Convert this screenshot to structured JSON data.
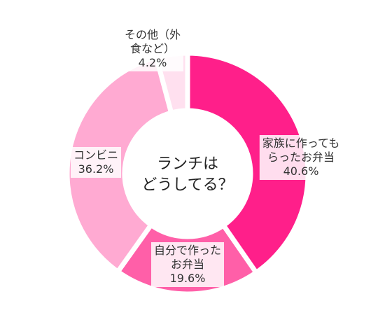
{
  "chart_data": {
    "type": "donut",
    "title": "ランチは\nどうしてる？",
    "categories": [
      "家族に作っても\nらったお弁当",
      "自分で作った\nお弁当",
      "コンビニ",
      "その他（外\n食など）"
    ],
    "values": [
      40.6,
      19.6,
      36.2,
      4.2
    ],
    "value_labels": [
      "40.6%",
      "19.6%",
      "36.2%",
      "4.2%"
    ],
    "colors": [
      "#ff1f8a",
      "#ff5fa8",
      "#ffaad2",
      "#ffe0ef"
    ]
  }
}
